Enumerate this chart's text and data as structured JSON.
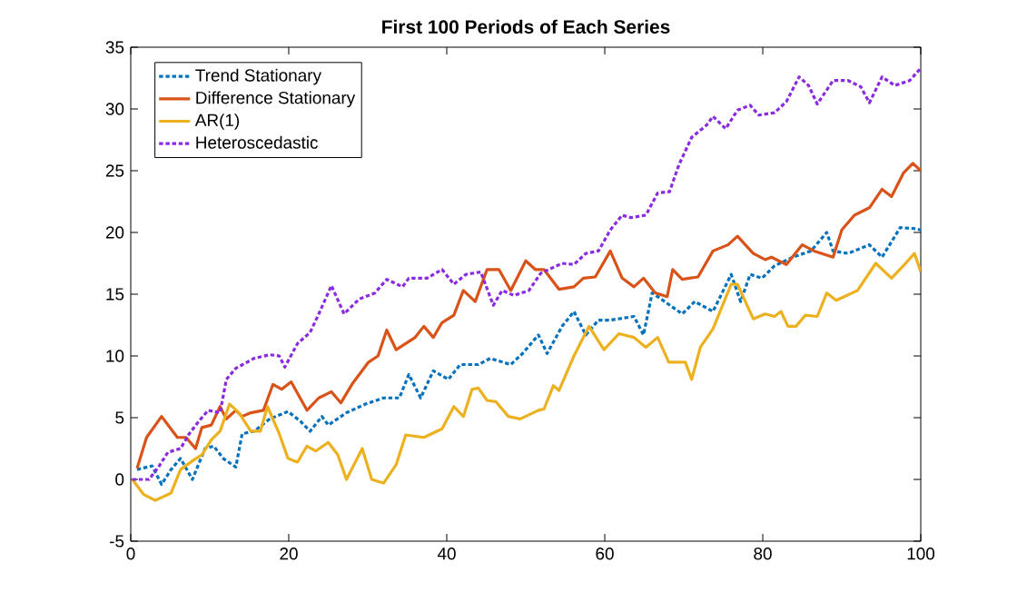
{
  "chart_data": {
    "type": "line",
    "title": "First 100 Periods of Each Series",
    "xlim": [
      0,
      100
    ],
    "xticks": [
      0,
      20,
      40,
      60,
      80,
      100
    ],
    "ylim": [
      -5,
      35
    ],
    "yticks": [
      -5,
      0,
      5,
      10,
      15,
      20,
      25,
      30,
      35
    ],
    "legend": "top left",
    "series": [
      {
        "name": "Trend Stationary",
        "color": "#0072bd",
        "line_style": "dotted",
        "x": [
          0.8,
          2.7,
          3.9,
          5.1,
          6.3,
          7.8,
          9.4,
          10.5,
          11.7,
          13.3,
          14.1,
          15.6,
          17.6,
          19.9,
          21.5,
          22.7,
          24.2,
          25,
          27.3,
          29.7,
          32,
          34,
          35.2,
          36.7,
          38.3,
          40.2,
          41.7,
          44,
          45.5,
          48.1,
          49.6,
          51.6,
          52.7,
          54.6,
          56.1,
          57.6,
          59.2,
          60.7,
          63.7,
          64.9,
          66,
          67.6,
          69.8,
          71.4,
          73.7,
          76,
          77.2,
          78.4,
          79.9,
          81.5,
          83.8,
          86.1,
          88.1,
          88.9,
          90.8,
          93.5,
          95.1,
          97.4,
          99.4,
          100
        ],
        "values": [
          0.8,
          1.1,
          -0.4,
          0.8,
          1.7,
          0,
          2.5,
          2.7,
          1.7,
          1,
          3.7,
          3.9,
          4.9,
          5.5,
          4.7,
          3.9,
          5.1,
          4.4,
          5.4,
          6.1,
          6.6,
          6.6,
          8.5,
          6.6,
          8.8,
          8.1,
          9.3,
          9.3,
          9.8,
          9.3,
          10.2,
          11.7,
          10.2,
          12.4,
          13.6,
          11.7,
          12.9,
          12.9,
          13.2,
          11.7,
          15.1,
          14.4,
          13.4,
          14.4,
          13.6,
          16.6,
          14.4,
          16.6,
          16.3,
          17.3,
          18,
          18.5,
          20,
          18.5,
          18.3,
          19,
          18,
          20.4,
          20.3,
          20.2
        ]
      },
      {
        "name": "Difference Stationary",
        "color": "#d95319",
        "line_style": "solid",
        "x": [
          0.8,
          2,
          3.9,
          5.9,
          7,
          8.2,
          9,
          10.2,
          11.3,
          12.1,
          13.3,
          14.1,
          15.2,
          16.8,
          18,
          19.1,
          20.3,
          22.3,
          23.8,
          25.4,
          26.6,
          28.1,
          30.1,
          31.3,
          32.4,
          33.6,
          34.8,
          36,
          37.1,
          38.3,
          39.4,
          40.9,
          42.1,
          43.6,
          45.1,
          46.6,
          48.1,
          50,
          51.2,
          52.3,
          54.2,
          56.1,
          57.3,
          58.8,
          60.7,
          62.2,
          63.7,
          64.9,
          66.4,
          67.9,
          68.6,
          69.8,
          71.8,
          73.7,
          75.6,
          76.8,
          78.8,
          80.3,
          81.1,
          83,
          85,
          86.5,
          88.9,
          90,
          91.6,
          93.5,
          95.1,
          96.3,
          97.8,
          99,
          100
        ],
        "values": [
          0.9,
          3.4,
          5.1,
          3.4,
          3.4,
          2.5,
          4.2,
          4.4,
          5.9,
          4.9,
          5.6,
          5.1,
          5.4,
          5.6,
          7.7,
          7.3,
          7.9,
          5.6,
          6.6,
          7.1,
          6.2,
          7.8,
          9.5,
          10,
          12.1,
          10.5,
          11,
          11.5,
          12.4,
          11.5,
          12.7,
          13.3,
          15.3,
          14.4,
          17,
          17,
          15.3,
          17.7,
          17,
          17,
          15.4,
          15.6,
          16.3,
          16.4,
          18.5,
          16.3,
          15.6,
          16.3,
          15.1,
          14.8,
          17,
          16.2,
          16.4,
          18.5,
          19,
          19.7,
          18.3,
          17.8,
          18,
          17.4,
          19,
          18.5,
          18,
          20.2,
          21.4,
          22,
          23.5,
          22.9,
          24.8,
          25.6,
          25
        ]
      },
      {
        "name": "AR(1)",
        "color": "#edb120",
        "line_style": "solid",
        "x": [
          0.2,
          1.6,
          3.1,
          5.1,
          6.3,
          7.8,
          9,
          10.2,
          11.3,
          12.5,
          13.7,
          15.2,
          16.4,
          17.3,
          18.8,
          19.9,
          21.1,
          22.3,
          23.4,
          25,
          26.2,
          27.3,
          29.3,
          30.5,
          32,
          33.6,
          34.8,
          37.1,
          39.4,
          40.9,
          42.1,
          43.2,
          44,
          45.1,
          46.2,
          47.8,
          49.3,
          51.6,
          52.3,
          53.5,
          54.2,
          56.1,
          58,
          59.9,
          61.8,
          63.7,
          65.2,
          66.7,
          68.1,
          69,
          70.2,
          71,
          72.1,
          73.7,
          76,
          76.8,
          78.8,
          80.3,
          81.5,
          82.3,
          83.2,
          84.2,
          85.4,
          86.9,
          88.1,
          89.3,
          92,
          94.3,
          96.3,
          97.8,
          99.2,
          100
        ],
        "values": [
          0,
          -1.2,
          -1.7,
          -1.1,
          0.8,
          1.5,
          2,
          3.2,
          3.9,
          6.1,
          5.4,
          3.9,
          3.9,
          5.9,
          3.7,
          1.7,
          1.4,
          2.7,
          2.3,
          3,
          2,
          0,
          2.5,
          0,
          -0.3,
          1.2,
          3.6,
          3.4,
          4.1,
          5.9,
          5.1,
          7.3,
          7.4,
          6.4,
          6.3,
          5.1,
          4.9,
          5.6,
          5.7,
          7.6,
          7.2,
          10,
          12.4,
          10.5,
          11.8,
          11.5,
          10.7,
          11.5,
          9.5,
          9.5,
          9.5,
          8.1,
          10.7,
          12.2,
          15.8,
          15.8,
          13,
          13.4,
          13.2,
          13.6,
          12.4,
          12.4,
          13.3,
          13.2,
          15.1,
          14.5,
          15.3,
          17.5,
          16.3,
          17.3,
          18.3,
          16.8
        ]
      },
      {
        "name": "Heteroscedastic",
        "color": "#8a2be2",
        "line_style": "dotted",
        "x": [
          0.2,
          2.3,
          3.5,
          4.7,
          6.3,
          7.4,
          8.6,
          9.8,
          11.3,
          12.1,
          13.3,
          15.6,
          17.6,
          18.8,
          19.5,
          21.1,
          22.7,
          23.8,
          25.4,
          27,
          28.9,
          30.9,
          32.4,
          34.4,
          35.2,
          37.5,
          39.4,
          40.9,
          42.4,
          44.3,
          45.9,
          47,
          48.5,
          50.4,
          51.9,
          54.6,
          56.1,
          57.6,
          59.2,
          60.7,
          62.2,
          63.3,
          65.2,
          66.7,
          68.2,
          69.4,
          71,
          72.9,
          73.7,
          75.3,
          76.8,
          78.4,
          79.5,
          81.5,
          83,
          84.6,
          85.8,
          86.9,
          88.9,
          90.8,
          92.4,
          93.5,
          95.1,
          96.7,
          98.6,
          100
        ],
        "values": [
          0,
          0,
          1,
          2.2,
          2.5,
          3.7,
          4.7,
          5.6,
          5.4,
          8.1,
          9,
          9.8,
          10.1,
          10,
          9.1,
          11,
          11.9,
          13.4,
          15.7,
          13.4,
          14.6,
          15.1,
          16.2,
          15.6,
          16.3,
          16.3,
          17,
          15.8,
          16.6,
          16.8,
          14.1,
          15.3,
          14.9,
          15.3,
          16.7,
          17.5,
          17.4,
          18.3,
          18.5,
          20.2,
          21.4,
          21.2,
          21.4,
          23.2,
          23.3,
          25.5,
          27.7,
          28.7,
          29.4,
          28.4,
          29.9,
          30.3,
          29.5,
          29.7,
          30.6,
          32.6,
          31.9,
          30.4,
          32.3,
          32.3,
          31.8,
          30.5,
          32.6,
          31.9,
          32.3,
          33.3
        ]
      }
    ]
  }
}
